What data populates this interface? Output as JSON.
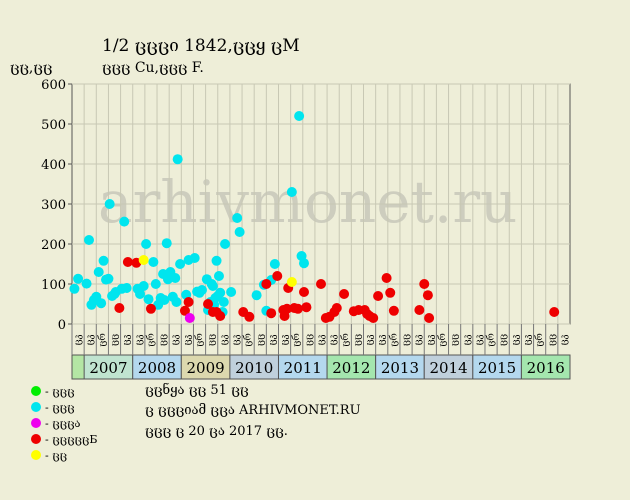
{
  "header": {
    "title": "1/2 ცცცი 1842,ცცყ ცM",
    "subtitle": "ცცც Cu,ცცც F.",
    "yunit": "ცც,ცც"
  },
  "watermark": "arhivmonet.ru",
  "footer": {
    "line1": "ცცნყა ცც 51 ცც",
    "line2": "ც ცცციამ ცცა ARHIVMONET.RU",
    "line3": "ცცც ც 20 ცა 2017 ცც."
  },
  "legend": [
    {
      "label": "- ცცც",
      "color": "#00ee00"
    },
    {
      "label": "- ცცც",
      "color": "#00e5ee"
    },
    {
      "label": "- ცცცა",
      "color": "#ee00ee"
    },
    {
      "label": "- ცცცცცБ",
      "color": "#ee0000"
    },
    {
      "label": "- ცც",
      "color": "#ffff00"
    }
  ],
  "chart_data": {
    "type": "scatter",
    "ylim": [
      0,
      600
    ],
    "yticks": [
      0,
      100,
      200,
      300,
      400,
      500,
      600
    ],
    "grid": true,
    "quarter_labels": [
      "ცკ",
      "ცკ",
      "ცრ",
      "ცც",
      "ცკ",
      "ცკ",
      "ცრ",
      "ცც",
      "ცკ",
      "ცკ",
      "ცრ",
      "ცც",
      "ცკ",
      "ცკ",
      "ცრ",
      "ცც",
      "ცკ",
      "ცკ",
      "ცრ",
      "ცც",
      "ცკ",
      "ცკ",
      "ცრ",
      "ცც",
      "ცკ",
      "ცკ",
      "ცრ",
      "ცც",
      "ცკ",
      "ცკ",
      "ცრ",
      "ცც",
      "ცკ",
      "ცკ",
      "ცრ",
      "ცც",
      "ცკ",
      "ცკ",
      "ცრ",
      "ცც",
      "ცკ"
    ],
    "years": [
      {
        "label": "2007",
        "start": 1,
        "end": 5,
        "color": "#c0e4d0"
      },
      {
        "label": "2008",
        "start": 5,
        "end": 9,
        "color": "#b4d8ee"
      },
      {
        "label": "2009",
        "start": 9,
        "end": 13,
        "color": "#dcd8ae"
      },
      {
        "label": "2010",
        "start": 13,
        "end": 17,
        "color": "#c0d0dc"
      },
      {
        "label": "2011",
        "start": 17,
        "end": 21,
        "color": "#b4d8ee"
      },
      {
        "label": "2012",
        "start": 21,
        "end": 25,
        "color": "#a4e6ae"
      },
      {
        "label": "2013",
        "start": 25,
        "end": 29,
        "color": "#b4d8ee"
      },
      {
        "label": "2014",
        "start": 29,
        "end": 33,
        "color": "#c0d0dc"
      },
      {
        "label": "2015",
        "start": 33,
        "end": 37,
        "color": "#b4d8ee"
      },
      {
        "label": "2016",
        "start": 37,
        "end": 41,
        "color": "#a4e6ae"
      }
    ],
    "series": [
      {
        "color": "#00e5ee",
        "points": [
          [
            0.2,
            88
          ],
          [
            0.5,
            113
          ],
          [
            1.2,
            101
          ],
          [
            1.4,
            210
          ],
          [
            1.6,
            48
          ],
          [
            1.8,
            60
          ],
          [
            2.0,
            68
          ],
          [
            2.2,
            130
          ],
          [
            2.4,
            52
          ],
          [
            2.6,
            158
          ],
          [
            2.8,
            111
          ],
          [
            3.0,
            113
          ],
          [
            3.1,
            300
          ],
          [
            3.3,
            70
          ],
          [
            3.5,
            75
          ],
          [
            3.6,
            80
          ],
          [
            4.1,
            88
          ],
          [
            4.3,
            256
          ],
          [
            4.5,
            90
          ],
          [
            5.4,
            88
          ],
          [
            5.6,
            75
          ],
          [
            5.9,
            95
          ],
          [
            6.1,
            200
          ],
          [
            6.3,
            62
          ],
          [
            6.7,
            155
          ],
          [
            6.9,
            100
          ],
          [
            7.1,
            48
          ],
          [
            7.3,
            65
          ],
          [
            7.5,
            125
          ],
          [
            7.6,
            60
          ],
          [
            7.8,
            202
          ],
          [
            7.9,
            112
          ],
          [
            8.1,
            130
          ],
          [
            8.3,
            68
          ],
          [
            8.5,
            115
          ],
          [
            8.6,
            55
          ],
          [
            8.7,
            412
          ],
          [
            8.9,
            150
          ],
          [
            9.4,
            73
          ],
          [
            9.6,
            160
          ],
          [
            10.1,
            165
          ],
          [
            10.3,
            81
          ],
          [
            10.5,
            78
          ],
          [
            10.7,
            85
          ],
          [
            11.1,
            112
          ],
          [
            11.2,
            35
          ],
          [
            11.4,
            55
          ],
          [
            11.5,
            100
          ],
          [
            11.6,
            95
          ],
          [
            11.7,
            48
          ],
          [
            11.8,
            65
          ],
          [
            11.9,
            158
          ],
          [
            12.0,
            70
          ],
          [
            12.1,
            120
          ],
          [
            12.2,
            78
          ],
          [
            12.4,
            30
          ],
          [
            12.5,
            55
          ],
          [
            12.6,
            200
          ],
          [
            13.1,
            80
          ],
          [
            13.6,
            265
          ],
          [
            13.8,
            230
          ],
          [
            15.2,
            72
          ],
          [
            15.8,
            98
          ],
          [
            16.0,
            33
          ],
          [
            16.4,
            110
          ],
          [
            16.7,
            150
          ],
          [
            18.1,
            330
          ],
          [
            18.7,
            520
          ],
          [
            18.9,
            170
          ],
          [
            19.1,
            152
          ]
        ]
      },
      {
        "color": "#ee0000",
        "points": [
          [
            3.9,
            40
          ],
          [
            4.6,
            155
          ],
          [
            5.3,
            153
          ],
          [
            6.5,
            38
          ],
          [
            9.3,
            33
          ],
          [
            9.6,
            55
          ],
          [
            11.2,
            50
          ],
          [
            11.6,
            30
          ],
          [
            11.9,
            30
          ],
          [
            12.2,
            20
          ],
          [
            14.1,
            30
          ],
          [
            14.6,
            18
          ],
          [
            16.0,
            100
          ],
          [
            16.4,
            27
          ],
          [
            16.9,
            120
          ],
          [
            17.4,
            35
          ],
          [
            17.5,
            20
          ],
          [
            17.7,
            38
          ],
          [
            17.8,
            90
          ],
          [
            18.3,
            40
          ],
          [
            18.6,
            38
          ],
          [
            19.1,
            80
          ],
          [
            19.3,
            42
          ],
          [
            20.5,
            100
          ],
          [
            20.9,
            15
          ],
          [
            21.2,
            18
          ],
          [
            21.6,
            30
          ],
          [
            21.8,
            40
          ],
          [
            22.4,
            75
          ],
          [
            23.2,
            32
          ],
          [
            23.6,
            35
          ],
          [
            24.1,
            35
          ],
          [
            24.3,
            25
          ],
          [
            24.5,
            20
          ],
          [
            24.8,
            15
          ],
          [
            25.2,
            70
          ],
          [
            25.9,
            115
          ],
          [
            26.2,
            78
          ],
          [
            26.5,
            33
          ],
          [
            28.6,
            35
          ],
          [
            29.0,
            100
          ],
          [
            29.3,
            72
          ],
          [
            29.4,
            15
          ],
          [
            39.7,
            30
          ]
        ]
      },
      {
        "color": "#ee00ee",
        "points": [
          [
            9.7,
            15
          ]
        ]
      },
      {
        "color": "#ffff00",
        "points": [
          [
            5.9,
            160
          ],
          [
            18.1,
            105
          ]
        ]
      }
    ]
  }
}
